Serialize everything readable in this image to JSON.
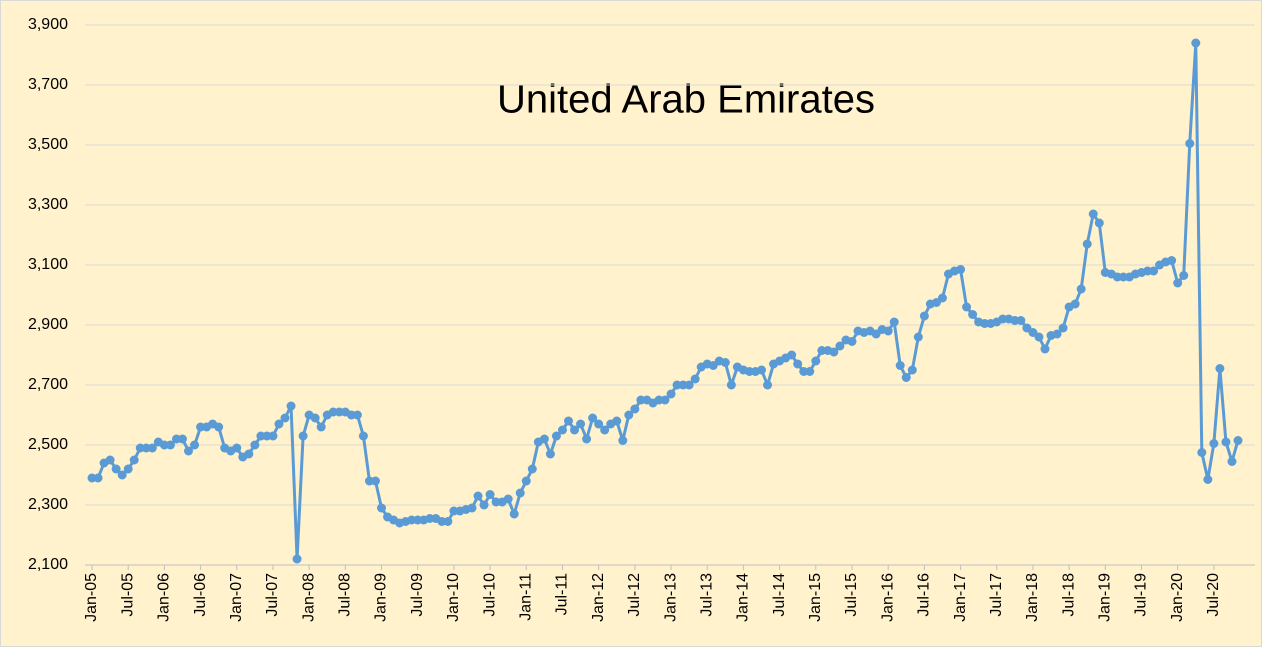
{
  "chart_data": {
    "type": "line",
    "title": "United Arab Emirates",
    "categories": [
      "Jan-05",
      null,
      null,
      null,
      null,
      null,
      "Jul-05",
      null,
      null,
      null,
      null,
      null,
      "Jan-06",
      null,
      null,
      null,
      null,
      null,
      "Jul-06",
      null,
      null,
      null,
      null,
      null,
      "Jan-07",
      null,
      null,
      null,
      null,
      null,
      "Jul-07",
      null,
      null,
      null,
      null,
      null,
      "Jan-08",
      null,
      null,
      null,
      null,
      null,
      "Jul-08",
      null,
      null,
      null,
      null,
      null,
      "Jan-09",
      null,
      null,
      null,
      null,
      null,
      "Jul-09",
      null,
      null,
      null,
      null,
      null,
      "Jan-10",
      null,
      null,
      null,
      null,
      null,
      "Jul-10",
      null,
      null,
      null,
      null,
      null,
      "Jan-11",
      null,
      null,
      null,
      null,
      null,
      "Jul-11",
      null,
      null,
      null,
      null,
      null,
      "Jan-12",
      null,
      null,
      null,
      null,
      null,
      "Jul-12",
      null,
      null,
      null,
      null,
      null,
      "Jan-13",
      null,
      null,
      null,
      null,
      null,
      "Jul-13",
      null,
      null,
      null,
      null,
      null,
      "Jan-14",
      null,
      null,
      null,
      null,
      null,
      "Jul-14",
      null,
      null,
      null,
      null,
      null,
      "Jan-15",
      null,
      null,
      null,
      null,
      null,
      "Jul-15",
      null,
      null,
      null,
      null,
      null,
      "Jan-16",
      null,
      null,
      null,
      null,
      null,
      "Jul-16",
      null,
      null,
      null,
      null,
      null,
      "Jan-17",
      null,
      null,
      null,
      null,
      null,
      "Jul-17",
      null,
      null,
      null,
      null,
      null,
      "Jan-18",
      null,
      null,
      null,
      null,
      null,
      "Jul-18",
      null,
      null,
      null,
      null,
      null,
      "Jan-19",
      null,
      null,
      null,
      null,
      null,
      "Jul-19",
      null,
      null,
      null,
      null,
      null,
      "Jan-20",
      null,
      null,
      null,
      null,
      null,
      "Jul-20",
      null,
      null,
      null,
      null
    ],
    "series": [
      {
        "color": "#5b9bd5",
        "values": [
          2390,
          2390,
          2440,
          2450,
          2420,
          2400,
          2420,
          2450,
          2490,
          2490,
          2490,
          2510,
          2500,
          2500,
          2520,
          2520,
          2480,
          2500,
          2560,
          2560,
          2570,
          2560,
          2490,
          2480,
          2490,
          2460,
          2470,
          2500,
          2530,
          2530,
          2530,
          2570,
          2590,
          2630,
          2120,
          2530,
          2600,
          2590,
          2560,
          2600,
          2610,
          2610,
          2610,
          2600,
          2600,
          2530,
          2380,
          2380,
          2290,
          2260,
          2250,
          2240,
          2245,
          2250,
          2250,
          2250,
          2255,
          2255,
          2245,
          2245,
          2280,
          2280,
          2285,
          2290,
          2330,
          2300,
          2335,
          2310,
          2310,
          2320,
          2270,
          2340,
          2380,
          2420,
          2510,
          2520,
          2470,
          2530,
          2550,
          2580,
          2550,
          2570,
          2520,
          2590,
          2570,
          2550,
          2570,
          2580,
          2515,
          2600,
          2620,
          2650,
          2650,
          2640,
          2650,
          2650,
          2670,
          2700,
          2700,
          2700,
          2720,
          2760,
          2770,
          2765,
          2780,
          2775,
          2700,
          2760,
          2750,
          2745,
          2745,
          2750,
          2700,
          2770,
          2780,
          2790,
          2800,
          2770,
          2745,
          2745,
          2780,
          2815,
          2815,
          2810,
          2830,
          2850,
          2845,
          2880,
          2875,
          2880,
          2870,
          2885,
          2880,
          2910,
          2765,
          2725,
          2750,
          2860,
          2930,
          2970,
          2975,
          2990,
          3070,
          3080,
          3085,
          2960,
          2935,
          2910,
          2905,
          2905,
          2910,
          2920,
          2920,
          2915,
          2915,
          2890,
          2875,
          2860,
          2820,
          2865,
          2870,
          2890,
          2960,
          2970,
          3020,
          3170,
          3270,
          3240,
          3075,
          3070,
          3060,
          3060,
          3060,
          3070,
          3075,
          3080,
          3080,
          3100,
          3110,
          3115,
          3040,
          3065,
          3505,
          3840,
          2475,
          2385,
          2505,
          2755,
          2510,
          2445,
          2515
        ]
      }
    ],
    "ylim": [
      2100,
      3900
    ],
    "yticks": [
      {
        "value": 2100,
        "label": "2,100"
      },
      {
        "value": 2300,
        "label": "2,300"
      },
      {
        "value": 2500,
        "label": "2,500"
      },
      {
        "value": 2700,
        "label": "2,700"
      },
      {
        "value": 2900,
        "label": "2,900"
      },
      {
        "value": 3100,
        "label": "3,100"
      },
      {
        "value": 3300,
        "label": "3,300"
      },
      {
        "value": 3500,
        "label": "3,500"
      },
      {
        "value": 3700,
        "label": "3,700"
      },
      {
        "value": 3900,
        "label": "3,900"
      }
    ],
    "grid": true
  }
}
